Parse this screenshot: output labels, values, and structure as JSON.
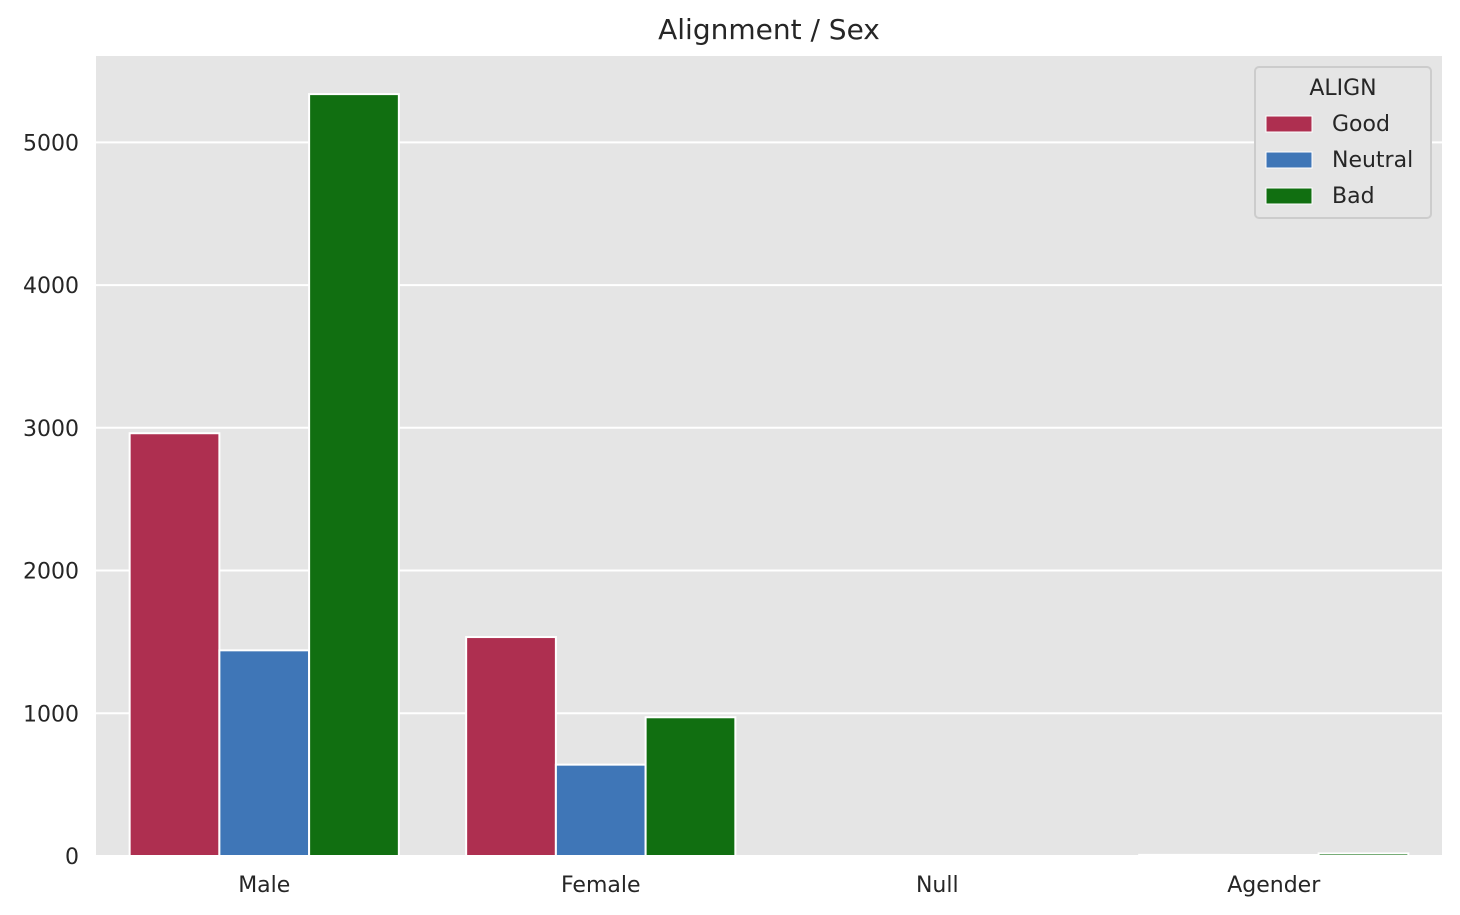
{
  "chart_data": {
    "type": "bar",
    "title": "Alignment / Sex",
    "xlabel": "",
    "ylabel": "",
    "categories": [
      "Male",
      "Female",
      "Null",
      "Agender"
    ],
    "series": [
      {
        "name": "Good",
        "color": "#ae2f50",
        "values": [
          2962,
          1534,
          0,
          8
        ]
      },
      {
        "name": "Neutral",
        "color": "#3f76b7",
        "values": [
          1441,
          640,
          0,
          7
        ]
      },
      {
        "name": "Bad",
        "color": "#116f11",
        "values": [
          5338,
          972,
          0,
          18
        ]
      }
    ],
    "yticks": [
      0,
      1000,
      2000,
      3000,
      4000,
      5000
    ],
    "ylim": [
      0,
      5605
    ],
    "grid": true,
    "legend": {
      "title": "ALIGN",
      "position": "top-right"
    }
  }
}
